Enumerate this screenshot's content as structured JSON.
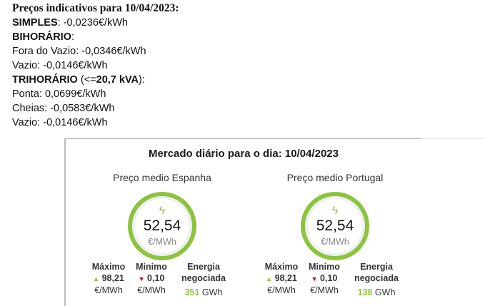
{
  "prices": {
    "heading": "Preços indicativos para 10/04/2023:",
    "simples_label": "SIMPLES",
    "simples_value": ": -0,0236€/kWh",
    "bihorario_label": "BIHORÁRIO",
    "bihorario_colon": ":",
    "fora_vazio": "Fora do Vazio: -0,0346€/kWh",
    "vazio_bi": "Vazio: -0,0146€/kWh",
    "trihorario_label": "TRIHORÁRIO",
    "trihorario_open": " (<=",
    "trihorario_kva": "20,7 kVA",
    "trihorario_close": "):",
    "ponta": "Ponta: 0,0699€/kWh",
    "cheias": "Cheias: -0,0583€/kWh",
    "vazio_tri": "Vazio: -0,0146€/kWh"
  },
  "market": {
    "title": "Mercado diário para o dia: 10/04/2023",
    "accent": "#8cc43f",
    "columns": [
      {
        "subtitle": "Preço medio Espanha",
        "value": "52,54",
        "unit": "€/MWh",
        "max_label": "Máximo",
        "max_value": "98,21",
        "max_unit": "€/MWh",
        "min_label": "Minimo",
        "min_value": "0,10",
        "min_unit": "€/MWh",
        "energy_label1": "Energia",
        "energy_label2": "negociada",
        "energy_value": "351",
        "energy_unit": "GWh"
      },
      {
        "subtitle": "Preço medio Portugal",
        "value": "52,54",
        "unit": "€/MWh",
        "max_label": "Máximo",
        "max_value": "98,21",
        "max_unit": "€/MWh",
        "min_label": "Minimo",
        "min_value": "0,10",
        "min_unit": "€/MWh",
        "energy_label1": "Energia",
        "energy_label2": "negociada",
        "energy_value": "138",
        "energy_unit": "GWh"
      }
    ]
  }
}
